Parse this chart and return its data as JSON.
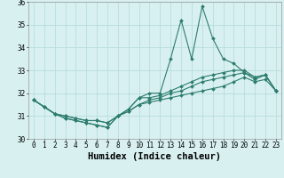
{
  "xlabel": "Humidex (Indice chaleur)",
  "ylabel": "",
  "x": [
    0,
    1,
    2,
    3,
    4,
    5,
    6,
    7,
    8,
    9,
    10,
    11,
    12,
    13,
    14,
    15,
    16,
    17,
    18,
    19,
    20,
    21,
    22,
    23
  ],
  "line1": [
    31.7,
    31.4,
    31.1,
    30.9,
    30.8,
    30.7,
    30.6,
    30.5,
    31.0,
    31.3,
    31.8,
    32.0,
    32.0,
    33.5,
    35.2,
    33.5,
    35.8,
    34.4,
    33.5,
    33.3,
    32.9,
    32.6,
    32.8,
    32.1
  ],
  "line2": [
    31.7,
    31.4,
    31.1,
    30.9,
    30.8,
    30.7,
    30.6,
    30.5,
    31.0,
    31.3,
    31.8,
    31.8,
    31.9,
    32.1,
    32.3,
    32.5,
    32.7,
    32.8,
    32.9,
    33.0,
    33.0,
    32.7,
    32.8,
    32.1
  ],
  "line3": [
    31.7,
    31.4,
    31.1,
    31.0,
    30.9,
    30.8,
    30.8,
    30.7,
    31.0,
    31.2,
    31.5,
    31.7,
    31.8,
    32.0,
    32.1,
    32.3,
    32.5,
    32.6,
    32.7,
    32.8,
    32.9,
    32.7,
    32.8,
    32.1
  ],
  "line4": [
    31.7,
    31.4,
    31.1,
    31.0,
    30.9,
    30.8,
    30.8,
    30.7,
    31.0,
    31.2,
    31.5,
    31.6,
    31.7,
    31.8,
    31.9,
    32.0,
    32.1,
    32.2,
    32.3,
    32.5,
    32.7,
    32.5,
    32.6,
    32.1
  ],
  "line_color": "#2d7d6e",
  "bg_color": "#d8f0f0",
  "grid_color": "#b8dede",
  "ylim": [
    30,
    36
  ],
  "yticks": [
    30,
    31,
    32,
    33,
    34,
    35,
    36
  ],
  "xticks": [
    0,
    1,
    2,
    3,
    4,
    5,
    6,
    7,
    8,
    9,
    10,
    11,
    12,
    13,
    14,
    15,
    16,
    17,
    18,
    19,
    20,
    21,
    22,
    23
  ],
  "tick_fontsize": 5.5,
  "label_fontsize": 7.5,
  "marker": "D",
  "markersize": 2.0,
  "linewidth": 0.8
}
